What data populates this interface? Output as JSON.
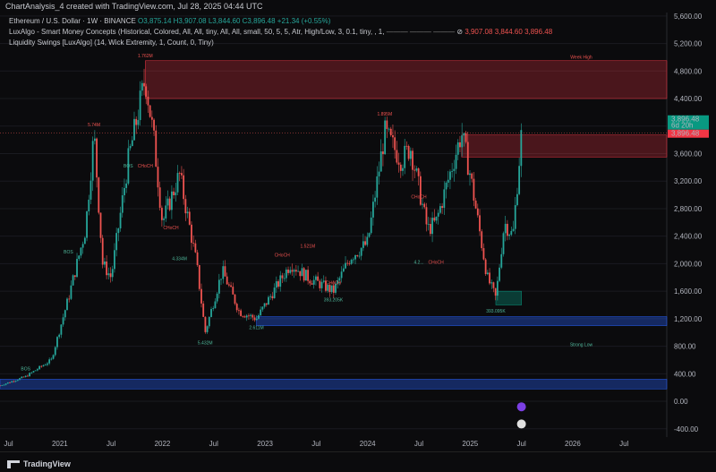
{
  "header": {
    "title": "ChartAnalysis_4 created with TradingView.com, Jul 28, 2025 04:44 UTC"
  },
  "legend": {
    "symbol": "Ethereum / U.S. Dollar · 1W · BINANCE",
    "o": "O3,875.14",
    "h": "H3,907.08",
    "l": "L3,844.60",
    "c": "C3,896.48",
    "chg": "+21.34 (+0.55%)",
    "smc": "LuxAlgo - Smart Money Concepts (Historical, Colored, All, All, tiny, All, All, small, 50, 5, 5, Atr, High/Low, 3, 0.1, tiny, , 1,",
    "smc_vals": [
      "3,907.08",
      "3,844.60",
      "3,896.48"
    ],
    "liq": "Liquidity Swings [LuxAlgo] (14, Wick Extremity, 1, Count, 0, Tiny)"
  },
  "price_labels": {
    "current": "3,896.48",
    "countdown_price": "3,896.48",
    "countdown": "6d 20h"
  },
  "brand": "TradingView",
  "colors": {
    "bull": "#26a69a",
    "bear": "#ef5350",
    "supply": "#f23645",
    "demand": "#089981",
    "liquidity": "#2962ff"
  },
  "chart_data": {
    "type": "candlestick",
    "title": "",
    "x_ticks": [
      "Jul",
      "2021",
      "Jul",
      "2022",
      "Jul",
      "2023",
      "Jul",
      "2024",
      "Jul",
      "2025",
      "Jul",
      "2026",
      "Jul"
    ],
    "y_ticks": [
      -400,
      0,
      400,
      800,
      1200,
      1600,
      2000,
      2400,
      2800,
      3200,
      3600,
      4000,
      4400,
      4800,
      5200,
      5600
    ],
    "ylim": [
      -520,
      5650
    ],
    "xlim": [
      "2020-06",
      "2026-12"
    ],
    "close_path": [
      [
        "2020-06",
        230
      ],
      [
        "2020-09",
        360
      ],
      [
        "2020-12",
        600
      ],
      [
        "2021-02",
        1500
      ],
      [
        "2021-04",
        2500
      ],
      [
        "2021-05",
        3900
      ],
      [
        "2021-06",
        2000
      ],
      [
        "2021-07",
        1800
      ],
      [
        "2021-09",
        3500
      ],
      [
        "2021-11",
        4700
      ],
      [
        "2021-12",
        3800
      ],
      [
        "2022-01",
        2600
      ],
      [
        "2022-03",
        3300
      ],
      [
        "2022-05",
        2000
      ],
      [
        "2022-06",
        1000
      ],
      [
        "2022-08",
        1900
      ],
      [
        "2022-10",
        1300
      ],
      [
        "2022-12",
        1200
      ],
      [
        "2023-02",
        1600
      ],
      [
        "2023-04",
        2000
      ],
      [
        "2023-06",
        1800
      ],
      [
        "2023-09",
        1600
      ],
      [
        "2023-11",
        2100
      ],
      [
        "2024-01",
        2300
      ],
      [
        "2024-03",
        3900
      ],
      [
        "2024-05",
        3500
      ],
      [
        "2024-06",
        3700
      ],
      [
        "2024-08",
        2500
      ],
      [
        "2024-09",
        2600
      ],
      [
        "2024-12",
        3900
      ],
      [
        "2025-01",
        3300
      ],
      [
        "2025-03",
        1800
      ],
      [
        "2025-04",
        1500
      ],
      [
        "2025-05",
        2600
      ],
      [
        "2025-06",
        2400
      ],
      [
        "2025-07",
        3896
      ]
    ],
    "zones": [
      {
        "label": "Week High",
        "from": "2021-11",
        "to": "2026-12",
        "low": 4400,
        "high": 4950,
        "type": "supply"
      },
      {
        "label": "",
        "from": "2024-12",
        "to": "2026-12",
        "low": 3550,
        "high": 3870,
        "type": "supply"
      },
      {
        "label": "",
        "from": "2022-12",
        "to": "2026-12",
        "low": 1100,
        "high": 1230,
        "type": "liquidity"
      },
      {
        "label": "",
        "from": "2020-06",
        "to": "2026-12",
        "low": 180,
        "high": 320,
        "type": "liquidity"
      },
      {
        "label": "",
        "from": "2025-04",
        "to": "2025-07",
        "low": 1400,
        "high": 1600,
        "type": "demand"
      }
    ],
    "annotations": [
      {
        "text": "5.74M",
        "x": "2021-05",
        "y": 4000
      },
      {
        "text": "1.762M",
        "x": "2021-11",
        "y": 5000
      },
      {
        "text": "Week High",
        "x": "2026-02",
        "y": 4980
      },
      {
        "text": "1.895M",
        "x": "2024-03",
        "y": 4150
      },
      {
        "text": "1.521M",
        "x": "2023-06",
        "y": 2230
      },
      {
        "text": "2.611M",
        "x": "2022-12",
        "y": 1050
      },
      {
        "text": "5.432M",
        "x": "2022-06",
        "y": 830
      },
      {
        "text": "393.095K",
        "x": "2025-04",
        "y": 1290
      },
      {
        "text": "Strong Low",
        "x": "2026-02",
        "y": 800
      },
      {
        "text": "BOS",
        "x": "2020-09",
        "y": 450
      },
      {
        "text": "BOS",
        "x": "2021-02",
        "y": 2150
      },
      {
        "text": "BOS",
        "x": "2021-09",
        "y": 3400
      },
      {
        "text": "CHoCH",
        "x": "2021-11",
        "y": 3400
      },
      {
        "text": "CHoCH",
        "x": "2022-02",
        "y": 2500
      },
      {
        "text": "CHoCH",
        "x": "2023-03",
        "y": 2100
      },
      {
        "text": "CHoCH",
        "x": "2023-09",
        "y": 1700
      },
      {
        "text": "CHoCH",
        "x": "2024-07",
        "y": 2950
      },
      {
        "text": "CHoCH",
        "x": "2024-09",
        "y": 2000
      },
      {
        "text": "4.334M",
        "x": "2022-03",
        "y": 2050
      },
      {
        "text": "4.2...",
        "x": "2024-07",
        "y": 2000
      },
      {
        "text": "393.205K",
        "x": "2023-09",
        "y": 1450
      }
    ]
  }
}
